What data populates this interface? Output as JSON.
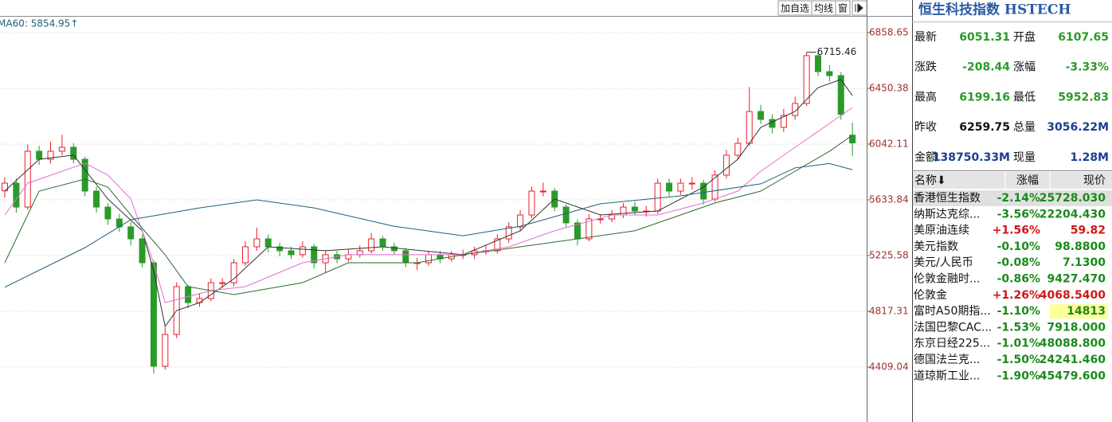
{
  "chart_data": {
    "type": "candlestick",
    "open": [
      5700,
      5756,
      5581,
      5990,
      5931,
      5990,
      6019,
      5931,
      5698,
      5581,
      5494,
      5436,
      5348,
      5173,
      4415,
      4648,
      4998,
      4881,
      4911,
      5027,
      5027,
      5173,
      5290,
      5348,
      5290,
      5261,
      5232,
      5290,
      5173,
      5232,
      5202,
      5232,
      5261,
      5348,
      5290,
      5261,
      5173,
      5173,
      5232,
      5202,
      5232,
      5232,
      5261,
      5261,
      5348,
      5436,
      5523,
      5698,
      5698,
      5581,
      5465,
      5348,
      5494,
      5494,
      5523,
      5581,
      5552,
      5552,
      5756,
      5698,
      5756,
      5756,
      5640,
      5815,
      5961,
      6048,
      6281,
      6223,
      6165,
      6252,
      6340,
      6690,
      6573,
      6544,
      6107.65
    ],
    "high": [
      5800,
      5790,
      6040,
      6030,
      6060,
      6110,
      6050,
      5950,
      5730,
      5610,
      5530,
      5470,
      5380,
      5190,
      4700,
      5030,
      5010,
      4950,
      5060,
      5060,
      5200,
      5330,
      5430,
      5380,
      5320,
      5290,
      5330,
      5310,
      5260,
      5260,
      5270,
      5300,
      5390,
      5370,
      5320,
      5280,
      5210,
      5260,
      5260,
      5260,
      5270,
      5290,
      5300,
      5380,
      5470,
      5560,
      5730,
      5760,
      5720,
      5600,
      5490,
      5530,
      5530,
      5560,
      5610,
      5620,
      5590,
      5790,
      5790,
      5790,
      5800,
      5780,
      5850,
      6000,
      6090,
      6460,
      6330,
      6260,
      6300,
      6390,
      6715.46,
      6710,
      6620,
      6570,
      6199.16
    ],
    "low": [
      5650,
      5540,
      5560,
      5890,
      5900,
      5960,
      5900,
      5660,
      5540,
      5450,
      5400,
      5300,
      5140,
      4360,
      4390,
      4620,
      4840,
      4850,
      4890,
      4990,
      5000,
      5150,
      5260,
      5250,
      5220,
      5200,
      5210,
      5130,
      5100,
      5170,
      5180,
      5210,
      5240,
      5260,
      5230,
      5140,
      5120,
      5150,
      5170,
      5180,
      5200,
      5200,
      5230,
      5240,
      5320,
      5410,
      5500,
      5660,
      5550,
      5430,
      5300,
      5330,
      5460,
      5470,
      5500,
      5520,
      5510,
      5530,
      5660,
      5670,
      5710,
      5600,
      5620,
      5790,
      5930,
      6030,
      6190,
      6120,
      6130,
      6220,
      6320,
      6540,
      6500,
      6220,
      5952.83
    ],
    "close": [
      5756,
      5581,
      5990,
      5931,
      5990,
      6019,
      5931,
      5698,
      5581,
      5494,
      5436,
      5348,
      5173,
      4415,
      4648,
      4998,
      4881,
      4911,
      5027,
      5027,
      5173,
      5290,
      5348,
      5290,
      5261,
      5232,
      5290,
      5173,
      5232,
      5202,
      5232,
      5261,
      5348,
      5290,
      5261,
      5173,
      5173,
      5232,
      5202,
      5232,
      5232,
      5261,
      5261,
      5348,
      5436,
      5523,
      5698,
      5698,
      5581,
      5465,
      5348,
      5494,
      5494,
      5523,
      5581,
      5552,
      5552,
      5756,
      5698,
      5756,
      5756,
      5640,
      5815,
      5961,
      6048,
      6281,
      6223,
      6165,
      6252,
      6340,
      6690,
      6573,
      6544,
      6259.75,
      6051.31
    ],
    "up_color": "#e8202a",
    "down_color": "#2a9a2a",
    "ma_lines": [
      {
        "color": "#333333",
        "x": [
          0,
          3,
          6,
          9,
          12,
          13,
          14,
          15,
          17,
          20,
          23,
          28,
          33,
          40,
          45,
          48,
          52,
          57,
          61,
          64,
          66,
          69,
          71,
          73,
          74
        ],
        "values": [
          5698,
          5931,
          5961,
          5640,
          5407,
          5115,
          4707,
          4823,
          4881,
          5056,
          5290,
          5261,
          5290,
          5232,
          5407,
          5640,
          5523,
          5552,
          5727,
          5931,
          6165,
          6281,
          6456,
          6515,
          6398
        ]
      },
      {
        "color": "#e070d0",
        "x": [
          0,
          2,
          7,
          9,
          11,
          13,
          14,
          18,
          21,
          26,
          30,
          36,
          40,
          44,
          48,
          53,
          57,
          61,
          64,
          66,
          69,
          72,
          74
        ],
        "values": [
          5523,
          5756,
          5902,
          5815,
          5640,
          5173,
          4881,
          4969,
          4998,
          5173,
          5232,
          5232,
          5232,
          5290,
          5407,
          5523,
          5523,
          5611,
          5698,
          5844,
          6019,
          6194,
          6310
        ]
      },
      {
        "color": "#2f6a2f",
        "x": [
          0,
          3,
          7,
          9,
          11,
          14,
          16,
          20,
          26,
          30,
          36,
          40,
          45,
          50,
          55,
          60,
          62,
          66,
          69,
          72,
          74
        ],
        "values": [
          5173,
          5698,
          5786,
          5727,
          5523,
          5232,
          4998,
          4940,
          5027,
          5173,
          5173,
          5232,
          5290,
          5348,
          5407,
          5552,
          5611,
          5698,
          5844,
          5990,
          6107
        ]
      },
      {
        "name": "MA60",
        "color": "#1f5f7a",
        "x": [
          0,
          7,
          11,
          17,
          22,
          27,
          34,
          40,
          45,
          52,
          59,
          66,
          69,
          72,
          74
        ],
        "values": [
          4994,
          5284,
          5488,
          5575,
          5634,
          5575,
          5440,
          5371,
          5440,
          5605,
          5663,
          5751,
          5868,
          5900,
          5854.95
        ]
      }
    ],
    "ma_label": "MA60: 5854.95↑",
    "ylim": [
      4006.6,
      6981.1
    ],
    "yticks": [
      4409.04,
      4817.31,
      5225.58,
      5633.84,
      6042.11,
      6450.38,
      6858.65
    ],
    "grid": true
  },
  "toolbar": [
    "加自选",
    "均线",
    "窗"
  ],
  "panel": {
    "title": "恒生科技指数 HSTECH",
    "stats": [
      [
        {
          "text": "最新"
        },
        {
          "text": "6051.31",
          "color": "#2a9a2a"
        },
        {
          "text": "开盘"
        },
        {
          "text": "6107.65",
          "color": "#2a9a2a"
        }
      ],
      [
        {
          "text": "涨跌"
        },
        {
          "text": "-208.44",
          "color": "#2a9a2a"
        },
        {
          "text": "涨幅"
        },
        {
          "text": "-3.33%",
          "color": "#2a9a2a"
        }
      ],
      [
        {
          "text": "最高"
        },
        {
          "text": "6199.16",
          "color": "#2a9a2a"
        },
        {
          "text": "最低"
        },
        {
          "text": "5952.83",
          "color": "#2a9a2a"
        }
      ],
      [
        {
          "text": "昨收"
        },
        {
          "text": "6259.75",
          "color": "#111111"
        },
        {
          "text": "总量"
        },
        {
          "text": "3056.22M",
          "color": "#1a3f8f"
        }
      ],
      [
        {
          "text": "金额"
        },
        {
          "text": "138750.33M",
          "color": "#1a3f8f"
        },
        {
          "text": "现量"
        },
        {
          "text": "1.28M",
          "color": "#1a3f8f"
        }
      ]
    ],
    "header": [
      "名称⬇",
      "涨幅",
      "现价"
    ],
    "rows": [
      [
        "香港恒生指数",
        "-2.14%",
        "25728.030"
      ],
      [
        "纳斯达克综...",
        "-3.56%",
        "22204.430"
      ],
      [
        "美原油连续",
        "+1.56%",
        "59.82"
      ],
      [
        "美元指数",
        "-0.10%",
        "98.8800"
      ],
      [
        "美元/人民币",
        "-0.08%",
        "7.1300"
      ],
      [
        "伦敦金融时...",
        "-0.86%",
        "9427.470"
      ],
      [
        "伦敦金",
        "+1.26%",
        "4068.5400"
      ],
      [
        "富时A50期指...",
        "-1.10%",
        "14813"
      ],
      [
        "法国巴黎CAC...",
        "-1.53%",
        "7918.000"
      ],
      [
        "东京日经225...",
        "-1.01%",
        "48088.800"
      ],
      [
        "德国法兰克...",
        "-1.50%",
        "24241.460"
      ],
      [
        "道琼斯工业...",
        "-1.90%",
        "45479.600"
      ]
    ]
  }
}
